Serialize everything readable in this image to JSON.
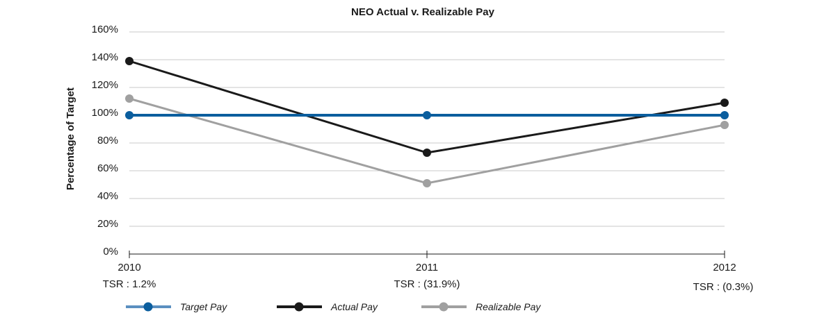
{
  "chart_data": {
    "type": "line",
    "title": "NEO Actual v. Realizable Pay",
    "ylabel": "Percentage of Target",
    "xlabel": "",
    "ylim": [
      0,
      160
    ],
    "yticks": [
      0,
      20,
      40,
      60,
      80,
      100,
      120,
      140,
      160
    ],
    "ytick_labels": [
      "0%",
      "20%",
      "40%",
      "60%",
      "80%",
      "100%",
      "120%",
      "140%",
      "160%"
    ],
    "categories": [
      "2010",
      "2011",
      "2012"
    ],
    "category_sublabels": [
      "TSR : 1.2%",
      "TSR : (31.9%)",
      "TSR : (0.3%)"
    ],
    "grid": true,
    "legend_position": "bottom",
    "series": [
      {
        "name": "Target Pay",
        "values": [
          100,
          100,
          100
        ],
        "color": "#0b5e9e",
        "legend_color": "#5b8fc0"
      },
      {
        "name": "Actual Pay",
        "values": [
          139,
          73,
          109
        ],
        "color": "#1a1a1a",
        "legend_color": "#1a1a1a"
      },
      {
        "name": "Realizable Pay",
        "values": [
          112,
          51,
          93
        ],
        "color": "#a0a0a0",
        "legend_color": "#a0a0a0"
      }
    ]
  }
}
